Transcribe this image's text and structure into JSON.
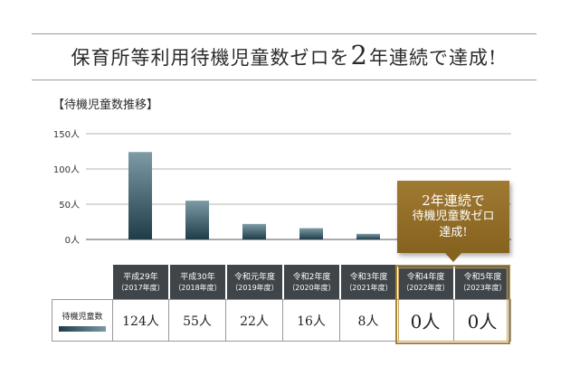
{
  "headline": {
    "part1": "保育所等利用待機児童数ゼロを",
    "number": "2",
    "part2": "年連続で達成!"
  },
  "callout": {
    "line1": "2年連続で",
    "line2": "待機児童数ゼロ",
    "line3": "達成!"
  },
  "chart_data": {
    "type": "bar",
    "title": "【待機児童数推移】",
    "categories": [
      "平成29年",
      "平成30年",
      "令和元年度",
      "令和2年度",
      "令和3年度",
      "令和4年度",
      "令和5年度"
    ],
    "categories_ce": [
      "（2017年度）",
      "（2018年度）",
      "（2019年度）",
      "（2020年度）",
      "（2021年度）",
      "（2022年度）",
      "（2023年度）"
    ],
    "series": [
      {
        "name": "待機児童数",
        "values": [
          124,
          55,
          22,
          16,
          8,
          0,
          0
        ]
      }
    ],
    "value_labels": [
      "124人",
      "55人",
      "22人",
      "16人",
      "8人",
      "0人",
      "0人"
    ],
    "y_ticks": [
      0,
      50,
      100,
      150
    ],
    "y_tick_labels": [
      "0人",
      "50人",
      "100人",
      "150人"
    ],
    "ylim": [
      0,
      150
    ],
    "xlabel": "",
    "ylabel": "",
    "grid": true,
    "highlight_categories": [
      5,
      6
    ],
    "colors": {
      "bar_top": "#7d9ba5",
      "bar_bottom": "#1f3d49",
      "header": "#3f4549",
      "gold": "#a7833a"
    }
  }
}
